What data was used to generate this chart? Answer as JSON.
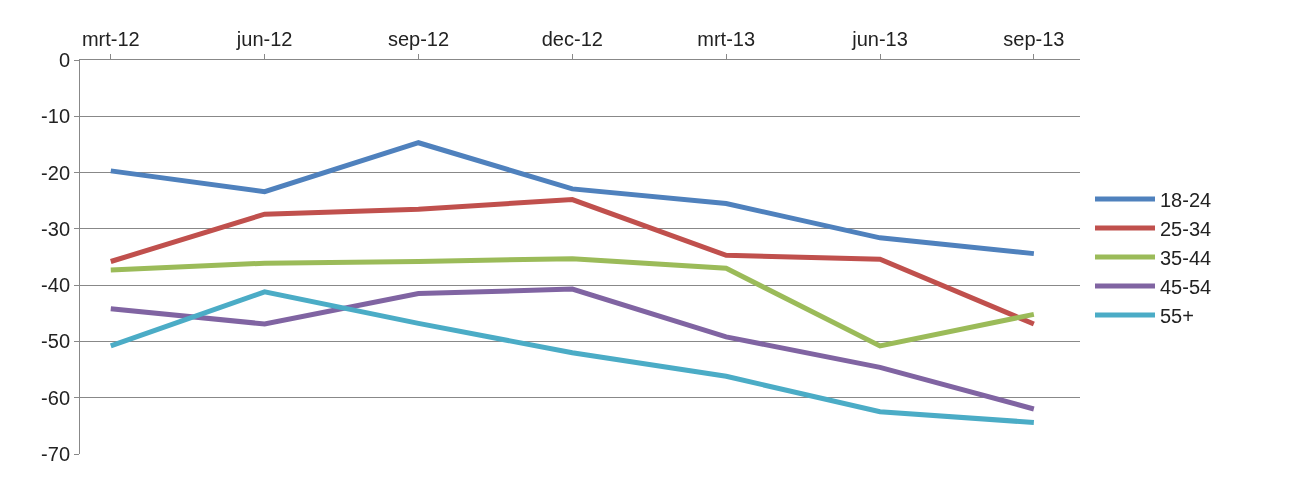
{
  "chart_data": {
    "type": "line",
    "categories": [
      "mrt-12",
      "jun-12",
      "sep-12",
      "dec-12",
      "mrt-13",
      "jun-13",
      "sep-13"
    ],
    "series": [
      {
        "name": "18-24",
        "color": "#4f81bd",
        "values": [
          -19.7,
          -23.4,
          -14.7,
          -22.9,
          -25.5,
          -31.6,
          -34.4
        ]
      },
      {
        "name": "25-34",
        "color": "#c0504d",
        "values": [
          -35.8,
          -27.4,
          -26.5,
          -24.8,
          -34.7,
          -35.4,
          -46.9
        ]
      },
      {
        "name": "35-44",
        "color": "#9bbb59",
        "values": [
          -37.3,
          -36.1,
          -35.8,
          -35.3,
          -37.0,
          -50.8,
          -45.2
        ]
      },
      {
        "name": "45-54",
        "color": "#8064a2",
        "values": [
          -44.2,
          -46.9,
          -41.5,
          -40.7,
          -49.2,
          -54.6,
          -62.0
        ]
      },
      {
        "name": "55+",
        "color": "#4bacc6",
        "values": [
          -50.8,
          -41.2,
          -46.8,
          -52.0,
          -56.2,
          -62.5,
          -64.4
        ]
      }
    ],
    "ylim": [
      -70,
      0
    ],
    "yticks": [
      -70,
      -60,
      -50,
      -40,
      -30,
      -20,
      -10,
      0
    ],
    "grid": "y",
    "legend": "right",
    "marker": "none",
    "line_style": "solid"
  }
}
